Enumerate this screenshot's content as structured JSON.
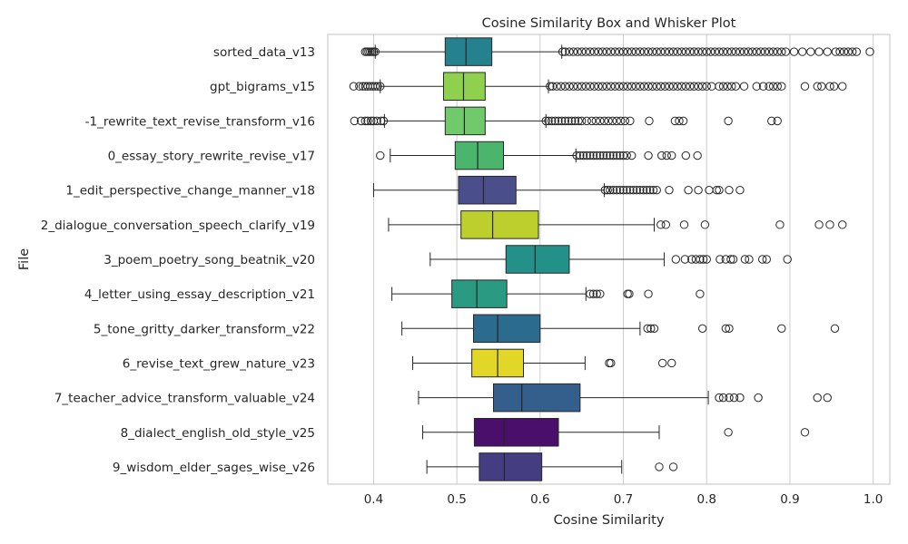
{
  "chart_data": {
    "type": "boxplot",
    "orientation": "horizontal",
    "title": "Cosine Similarity Box and Whisker Plot",
    "xlabel": "Cosine Similarity",
    "ylabel": "File",
    "xlim": [
      0.345,
      1.02
    ],
    "xticks": [
      0.4,
      0.5,
      0.6,
      0.7,
      0.8,
      0.9,
      1.0
    ],
    "xtick_labels": [
      "0.4",
      "0.5",
      "0.6",
      "0.7",
      "0.8",
      "0.9",
      "1.0"
    ],
    "grid": true,
    "series": [
      {
        "name": "sorted_data_v13",
        "color": "#26818e",
        "whislo": 0.402,
        "q1": 0.486,
        "med": 0.511,
        "q3": 0.542,
        "whishi": 0.626,
        "fliers": [
          0.39,
          0.392,
          0.394,
          0.396,
          0.398,
          0.4,
          0.402,
          0.627,
          0.63,
          0.635,
          0.64,
          0.645,
          0.65,
          0.655,
          0.66,
          0.665,
          0.67,
          0.675,
          0.68,
          0.685,
          0.69,
          0.695,
          0.7,
          0.705,
          0.71,
          0.715,
          0.72,
          0.725,
          0.73,
          0.735,
          0.74,
          0.745,
          0.75,
          0.755,
          0.76,
          0.765,
          0.77,
          0.775,
          0.78,
          0.785,
          0.79,
          0.795,
          0.8,
          0.805,
          0.81,
          0.815,
          0.82,
          0.825,
          0.83,
          0.835,
          0.84,
          0.845,
          0.85,
          0.855,
          0.86,
          0.865,
          0.87,
          0.875,
          0.88,
          0.885,
          0.89,
          0.895,
          0.905,
          0.915,
          0.925,
          0.935,
          0.945,
          0.955,
          0.96,
          0.965,
          0.97,
          0.975,
          0.98,
          0.996
        ]
      },
      {
        "name": "gpt_bigrams_v15",
        "color": "#8fd14f",
        "whislo": 0.408,
        "q1": 0.484,
        "med": 0.508,
        "q3": 0.534,
        "whishi": 0.61,
        "fliers": [
          0.376,
          0.383,
          0.387,
          0.39,
          0.393,
          0.396,
          0.399,
          0.402,
          0.405,
          0.408,
          0.612,
          0.615,
          0.62,
          0.625,
          0.63,
          0.635,
          0.64,
          0.645,
          0.65,
          0.655,
          0.66,
          0.665,
          0.67,
          0.675,
          0.68,
          0.685,
          0.69,
          0.695,
          0.7,
          0.705,
          0.71,
          0.715,
          0.72,
          0.725,
          0.73,
          0.735,
          0.74,
          0.745,
          0.75,
          0.755,
          0.76,
          0.765,
          0.77,
          0.775,
          0.78,
          0.785,
          0.79,
          0.795,
          0.8,
          0.806,
          0.815,
          0.82,
          0.825,
          0.83,
          0.835,
          0.845,
          0.86,
          0.868,
          0.875,
          0.88,
          0.885,
          0.89,
          0.918,
          0.933,
          0.938,
          0.948,
          0.953,
          0.963
        ]
      },
      {
        "name": "-1_rewrite_text_revise_transform_v16",
        "color": "#70c96b",
        "whislo": 0.413,
        "q1": 0.486,
        "med": 0.509,
        "q3": 0.534,
        "whishi": 0.607,
        "fliers": [
          0.377,
          0.385,
          0.39,
          0.393,
          0.397,
          0.4,
          0.404,
          0.409,
          0.412,
          0.607,
          0.61,
          0.614,
          0.618,
          0.622,
          0.626,
          0.63,
          0.634,
          0.638,
          0.642,
          0.646,
          0.65,
          0.656,
          0.662,
          0.667,
          0.672,
          0.677,
          0.682,
          0.687,
          0.692,
          0.697,
          0.702,
          0.708,
          0.731,
          0.762,
          0.767,
          0.772,
          0.826,
          0.878,
          0.885
        ]
      },
      {
        "name": "0_essay_story_rewrite_revise_v17",
        "color": "#4bb56e",
        "whislo": 0.42,
        "q1": 0.498,
        "med": 0.525,
        "q3": 0.556,
        "whishi": 0.643,
        "fliers": [
          0.408,
          0.644,
          0.648,
          0.652,
          0.656,
          0.66,
          0.664,
          0.668,
          0.672,
          0.676,
          0.68,
          0.684,
          0.688,
          0.692,
          0.696,
          0.7,
          0.704,
          0.71,
          0.73,
          0.746,
          0.752,
          0.758,
          0.775,
          0.789
        ]
      },
      {
        "name": "1_edit_perspective_change_manner_v18",
        "color": "#4a4f8c",
        "whislo": 0.4,
        "q1": 0.502,
        "med": 0.532,
        "q3": 0.571,
        "whishi": 0.677,
        "fliers": [
          0.678,
          0.681,
          0.684,
          0.688,
          0.692,
          0.696,
          0.7,
          0.704,
          0.708,
          0.712,
          0.716,
          0.72,
          0.724,
          0.728,
          0.732,
          0.736,
          0.74,
          0.755,
          0.778,
          0.79,
          0.803,
          0.812,
          0.815,
          0.827,
          0.84
        ]
      },
      {
        "name": "2_dialogue_conversation_speech_clarify_v19",
        "color": "#bccf2d",
        "whislo": 0.418,
        "q1": 0.505,
        "med": 0.543,
        "q3": 0.598,
        "whishi": 0.737,
        "fliers": [
          0.745,
          0.751,
          0.773,
          0.798,
          0.888,
          0.935,
          0.948,
          0.963
        ]
      },
      {
        "name": "3_poem_poetry_song_beatnik_v20",
        "color": "#23918a",
        "whislo": 0.468,
        "q1": 0.559,
        "med": 0.594,
        "q3": 0.635,
        "whishi": 0.749,
        "fliers": [
          0.763,
          0.774,
          0.782,
          0.787,
          0.792,
          0.796,
          0.8,
          0.816,
          0.823,
          0.829,
          0.832,
          0.846,
          0.851,
          0.867,
          0.872,
          0.897
        ]
      },
      {
        "name": "4_letter_using_essay_description_v21",
        "color": "#2a9a82",
        "whislo": 0.422,
        "q1": 0.494,
        "med": 0.524,
        "q3": 0.56,
        "whishi": 0.655,
        "fliers": [
          0.66,
          0.664,
          0.668,
          0.672,
          0.705,
          0.707,
          0.73,
          0.792
        ]
      },
      {
        "name": "5_tone_gritty_darker_transform_v22",
        "color": "#2b6c8e",
        "whislo": 0.434,
        "q1": 0.52,
        "med": 0.549,
        "q3": 0.6,
        "whishi": 0.72,
        "fliers": [
          0.729,
          0.733,
          0.737,
          0.795,
          0.823,
          0.827,
          0.89,
          0.954
        ]
      },
      {
        "name": "6_revise_text_grew_nature_v23",
        "color": "#e2d627",
        "whislo": 0.447,
        "q1": 0.518,
        "med": 0.549,
        "q3": 0.58,
        "whishi": 0.654,
        "fliers": [
          0.683,
          0.685,
          0.747,
          0.758
        ]
      },
      {
        "name": "7_teacher_advice_transform_valuable_v24",
        "color": "#345e8b",
        "whislo": 0.454,
        "q1": 0.544,
        "med": 0.578,
        "q3": 0.648,
        "whishi": 0.802,
        "fliers": [
          0.815,
          0.82,
          0.827,
          0.833,
          0.84,
          0.862,
          0.933,
          0.945
        ]
      },
      {
        "name": "8_dialect_english_old_style_v25",
        "color": "#4a0e6b",
        "whislo": 0.459,
        "q1": 0.521,
        "med": 0.557,
        "q3": 0.622,
        "whishi": 0.743,
        "fliers": [
          0.826,
          0.918
        ]
      },
      {
        "name": "9_wisdom_elder_sages_wise_v26",
        "color": "#443d82",
        "whislo": 0.464,
        "q1": 0.527,
        "med": 0.557,
        "q3": 0.602,
        "whishi": 0.698,
        "fliers": [
          0.743,
          0.76
        ]
      }
    ]
  }
}
